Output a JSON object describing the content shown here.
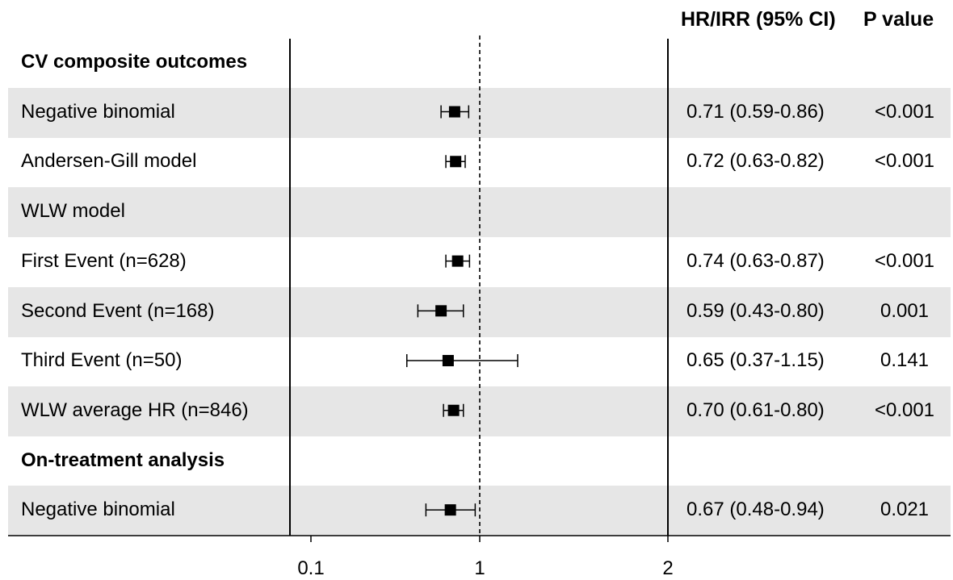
{
  "chart_data": {
    "type": "forest",
    "columns": {
      "estimate": "HR/IRR (95% CI)",
      "p": "P value"
    },
    "x_ticks": [
      {
        "label": "0.1",
        "value": 0.1
      },
      {
        "label": "1",
        "value": 1
      },
      {
        "label": "2",
        "value": 2
      }
    ],
    "reference_line": 1,
    "rows": [
      {
        "label": "CV composite outcomes",
        "section": true,
        "shaded": false
      },
      {
        "label": "Negative binomial",
        "est": 0.71,
        "lo": 0.59,
        "hi": 0.86,
        "ci_text": "0.71 (0.59-0.86)",
        "p": "<0.001",
        "shaded": true
      },
      {
        "label": "Andersen-Gill model",
        "est": 0.72,
        "lo": 0.63,
        "hi": 0.82,
        "ci_text": "0.72 (0.63-0.82)",
        "p": "<0.001",
        "shaded": false
      },
      {
        "label": "WLW model",
        "section": false,
        "shaded": true
      },
      {
        "label": "First Event (n=628)",
        "est": 0.74,
        "lo": 0.63,
        "hi": 0.87,
        "ci_text": "0.74 (0.63-0.87)",
        "p": "<0.001",
        "shaded": false
      },
      {
        "label": "Second Event (n=168)",
        "est": 0.59,
        "lo": 0.43,
        "hi": 0.8,
        "ci_text": "0.59 (0.43-0.80)",
        "p": "0.001",
        "shaded": true
      },
      {
        "label": "Third Event (n=50)",
        "est": 0.65,
        "lo": 0.37,
        "hi": 1.15,
        "ci_text": "0.65 (0.37-1.15)",
        "p": "0.141",
        "shaded": false
      },
      {
        "label": "WLW average HR (n=846)",
        "est": 0.7,
        "lo": 0.61,
        "hi": 0.8,
        "ci_text": "0.70 (0.61-0.80)",
        "p": "<0.001",
        "shaded": true
      },
      {
        "label": "On-treatment analysis",
        "section": true,
        "shaded": false
      },
      {
        "label": "Negative binomial",
        "est": 0.67,
        "lo": 0.48,
        "hi": 0.94,
        "ci_text": "0.67 (0.48-0.94)",
        "p": "0.021",
        "shaded": true
      }
    ]
  }
}
